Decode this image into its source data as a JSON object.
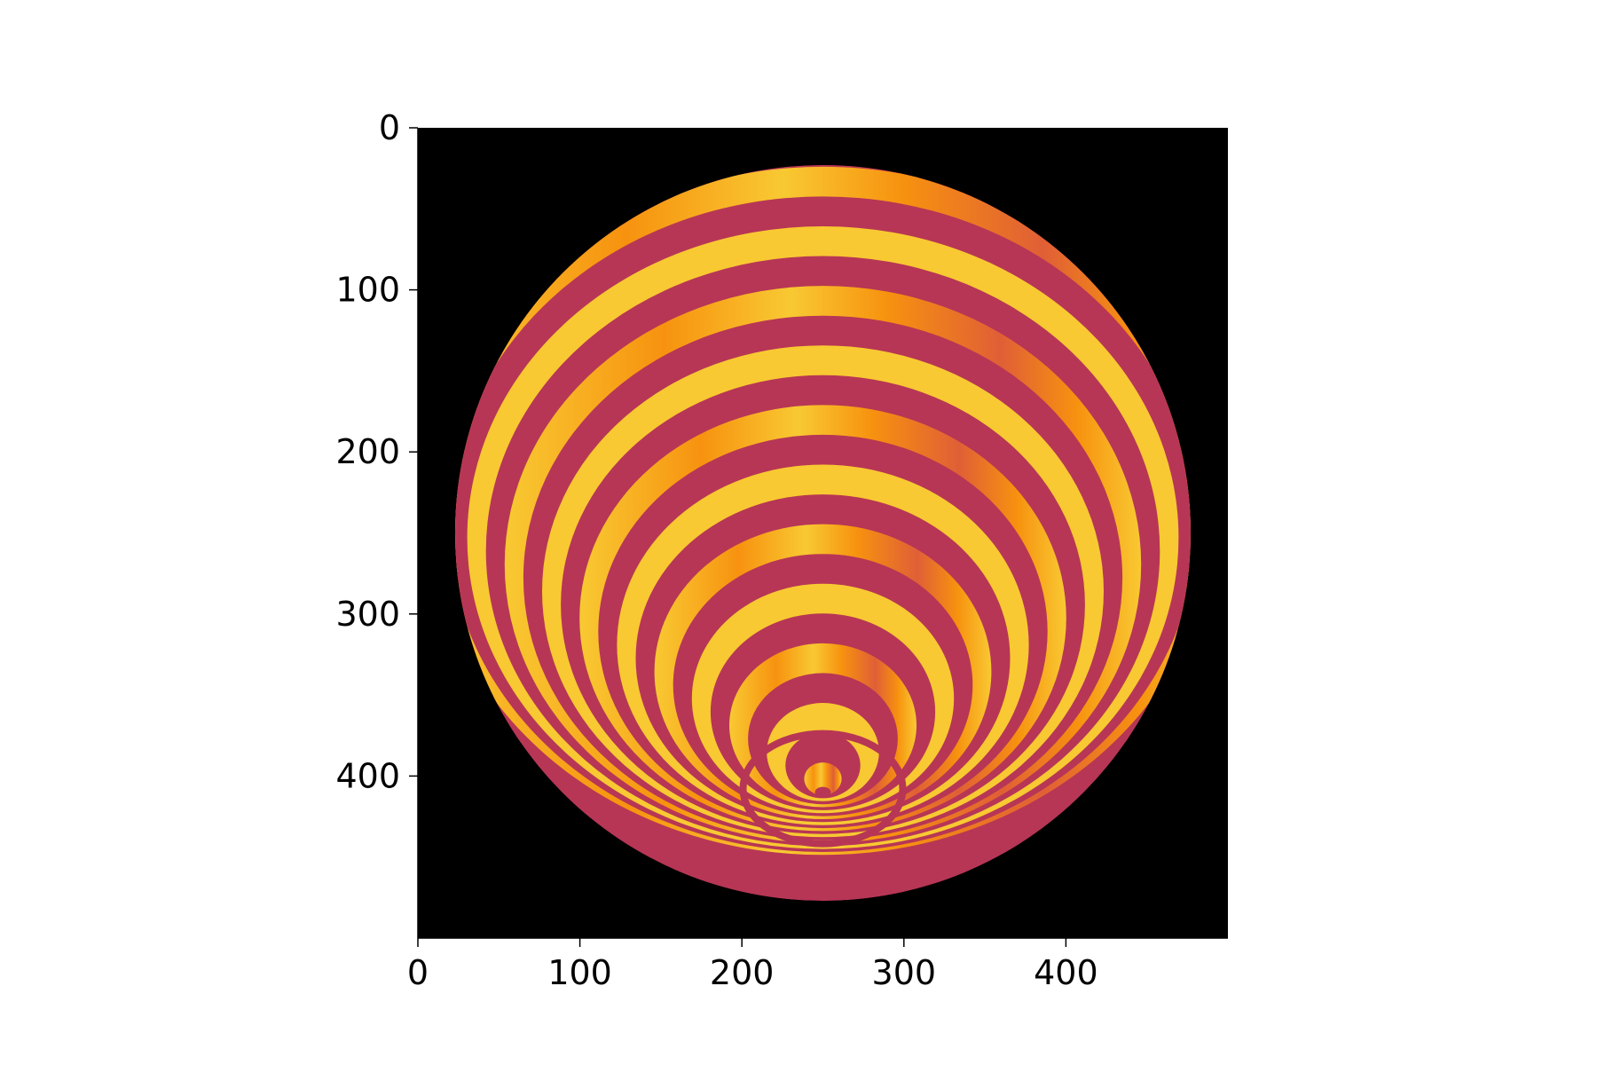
{
  "chart_data": {
    "type": "heatmap",
    "title": "",
    "xlabel": "",
    "ylabel": "",
    "image_shape": [
      500,
      500
    ],
    "xlim": [
      0,
      500
    ],
    "ylim": [
      500,
      0
    ],
    "y_axis_inverted": true,
    "grid": false,
    "legend": "none",
    "x_ticks": [
      0,
      100,
      200,
      300,
      400
    ],
    "y_ticks": [
      0,
      100,
      200,
      300,
      400
    ],
    "x_tick_labels": [
      "0",
      "100",
      "200",
      "300",
      "400"
    ],
    "y_tick_labels": [
      "0",
      "100",
      "200",
      "300",
      "400"
    ],
    "colormap": "inferno",
    "content": "sphere with banded stripes; stripes converge toward a pole near the bottom center",
    "sphere": {
      "center_x": 250,
      "center_y": 250,
      "radius": 227,
      "pole_x": 250,
      "pole_y": 410
    },
    "colors": {
      "background": "#000000",
      "band_dark": "#b73655",
      "band_mid": "#e05f36",
      "band_orange": "#f7920f",
      "band_light": "#f8c932"
    }
  }
}
